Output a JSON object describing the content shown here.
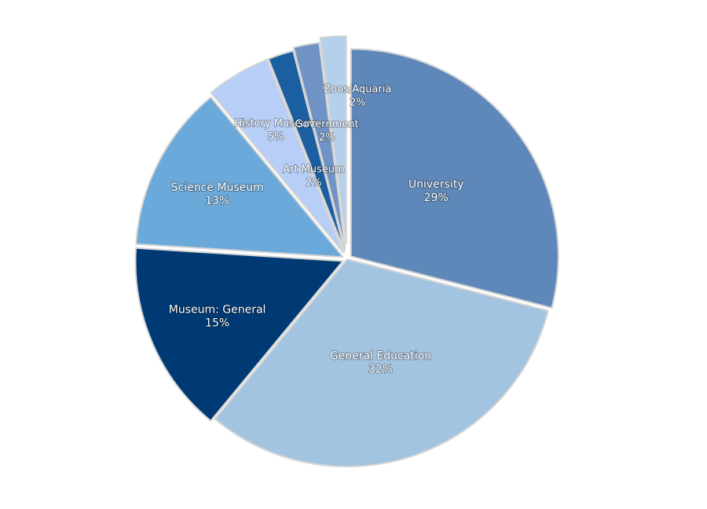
{
  "chart_data": {
    "type": "pie",
    "slices": [
      {
        "label": "University",
        "value": 29,
        "value_label": "29%",
        "color": "#5f88ba",
        "explode": 6
      },
      {
        "label": "General Education",
        "value": 32,
        "value_label": "32%",
        "color": "#a3c4e0",
        "explode": 0
      },
      {
        "label": "Museum: General",
        "value": 15,
        "value_label": "15%",
        "color": "#003a74",
        "explode": 6
      },
      {
        "label": "Science Museum",
        "value": 13,
        "value_label": "13%",
        "color": "#6aa9d9",
        "explode": 6
      },
      {
        "label": "History Museum",
        "value": 5,
        "value_label": "5%",
        "color": "#b7cff7",
        "explode": 10
      },
      {
        "label": "Art Museum",
        "value": 2,
        "value_label": "2%",
        "color": "#1a5fa0",
        "explode": 10
      },
      {
        "label": "Government",
        "value": 2,
        "value_label": "2%",
        "color": "#6f93c4",
        "explode": 14
      },
      {
        "label": "Zoos/Aquaria",
        "value": 2,
        "value_label": "2%",
        "color": "#b4d0ea",
        "explode": 20
      }
    ],
    "start_angle_deg": 0,
    "direction": "clockwise",
    "legend": "none",
    "labels_inside": true
  }
}
